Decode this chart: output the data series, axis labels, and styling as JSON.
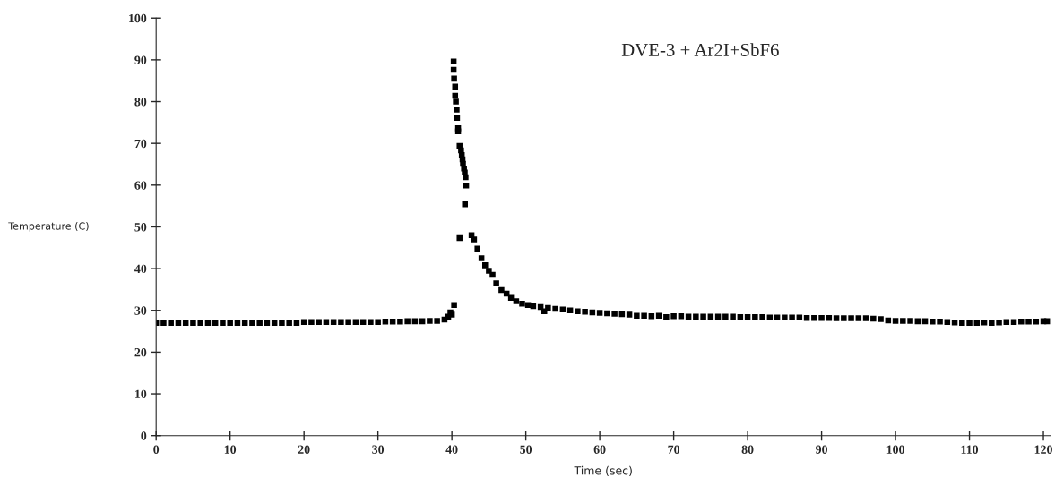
{
  "chart_data": {
    "type": "scatter",
    "xlabel": "Time (sec)",
    "ylabel": "Temperature (C)",
    "annotations": [
      "DVE-3 + Ar2I+SbF6"
    ],
    "xlim": [
      0,
      121
    ],
    "xticks": [
      0,
      10,
      20,
      30,
      40,
      50,
      60,
      70,
      80,
      90,
      100,
      110,
      120
    ],
    "ylim": [
      0,
      100
    ],
    "yticks": [
      0,
      10,
      20,
      30,
      40,
      50,
      60,
      70,
      80,
      90,
      100
    ],
    "grid": false,
    "legend": false,
    "marker": "square",
    "series": [
      {
        "color": "#000000",
        "x": [
          0,
          1,
          2,
          3,
          4,
          5,
          6,
          7,
          8,
          9,
          10,
          11,
          12,
          13,
          14,
          15,
          16,
          17,
          18,
          19,
          20,
          21,
          22,
          23,
          24,
          25,
          26,
          27,
          28,
          29,
          30,
          31,
          32,
          33,
          34,
          35,
          36,
          37,
          38,
          39,
          39.5,
          39.8,
          40.0,
          40.3,
          40.24,
          40.24,
          40.3,
          40.44,
          40.44,
          40.54,
          40.64,
          40.7,
          40.84,
          40.84,
          41.04,
          41.24,
          41.34,
          41.44,
          41.5,
          41.64,
          41.74,
          41.85,
          41.93,
          41.77,
          41.04,
          42.66,
          43.0,
          43.46,
          44.0,
          44.5,
          45.0,
          45.5,
          46.0,
          46.7,
          47.4,
          48.0,
          48.7,
          49.5,
          50.3,
          51.0,
          52.0,
          52.5,
          53,
          54,
          55,
          56,
          57,
          58,
          59,
          60,
          61,
          62,
          63,
          64,
          65,
          66,
          67,
          68,
          69,
          70,
          71,
          72,
          73,
          74,
          75,
          76,
          77,
          78,
          79,
          80,
          81,
          82,
          83,
          84,
          85,
          86,
          87,
          88,
          89,
          90,
          91,
          92,
          93,
          94,
          95,
          96,
          97,
          98,
          99,
          100,
          101,
          102,
          103,
          104,
          105,
          106,
          107,
          108,
          109,
          110,
          111,
          112,
          113,
          114,
          115,
          116,
          117,
          118,
          119,
          120,
          120.5
        ],
        "values": [
          27.0,
          27.0,
          27.0,
          27.0,
          27.0,
          27.0,
          27.0,
          27.0,
          27.0,
          27.0,
          27.0,
          27.0,
          27.0,
          27.0,
          27.0,
          27.0,
          27.0,
          27.0,
          27.0,
          27.0,
          27.2,
          27.2,
          27.2,
          27.2,
          27.2,
          27.2,
          27.2,
          27.2,
          27.2,
          27.2,
          27.2,
          27.3,
          27.3,
          27.3,
          27.4,
          27.4,
          27.4,
          27.5,
          27.5,
          27.8,
          28.5,
          29.5,
          29.0,
          31.3,
          89.6,
          87.6,
          85.5,
          83.6,
          81.4,
          80.0,
          78.1,
          76.1,
          73.6,
          72.9,
          69.4,
          68.3,
          67.2,
          66.2,
          65.1,
          64.0,
          63.0,
          61.9,
          59.9,
          55.4,
          47.3,
          48.0,
          47.0,
          44.8,
          42.5,
          40.8,
          39.5,
          38.5,
          36.5,
          34.9,
          34.0,
          33.0,
          32.2,
          31.6,
          31.3,
          31.0,
          30.8,
          29.8,
          30.6,
          30.4,
          30.2,
          30.0,
          29.8,
          29.7,
          29.5,
          29.4,
          29.3,
          29.2,
          29.1,
          29.0,
          28.7,
          28.7,
          28.6,
          28.7,
          28.4,
          28.6,
          28.6,
          28.5,
          28.5,
          28.5,
          28.5,
          28.5,
          28.5,
          28.5,
          28.4,
          28.4,
          28.4,
          28.4,
          28.3,
          28.3,
          28.3,
          28.3,
          28.3,
          28.2,
          28.2,
          28.2,
          28.2,
          28.1,
          28.1,
          28.1,
          28.1,
          28.1,
          28.0,
          27.9,
          27.6,
          27.5,
          27.5,
          27.5,
          27.4,
          27.4,
          27.3,
          27.3,
          27.2,
          27.1,
          27.0,
          27.0,
          27.0,
          27.1,
          27.0,
          27.1,
          27.2,
          27.2,
          27.3,
          27.3,
          27.3,
          27.4,
          27.4
        ]
      }
    ]
  }
}
